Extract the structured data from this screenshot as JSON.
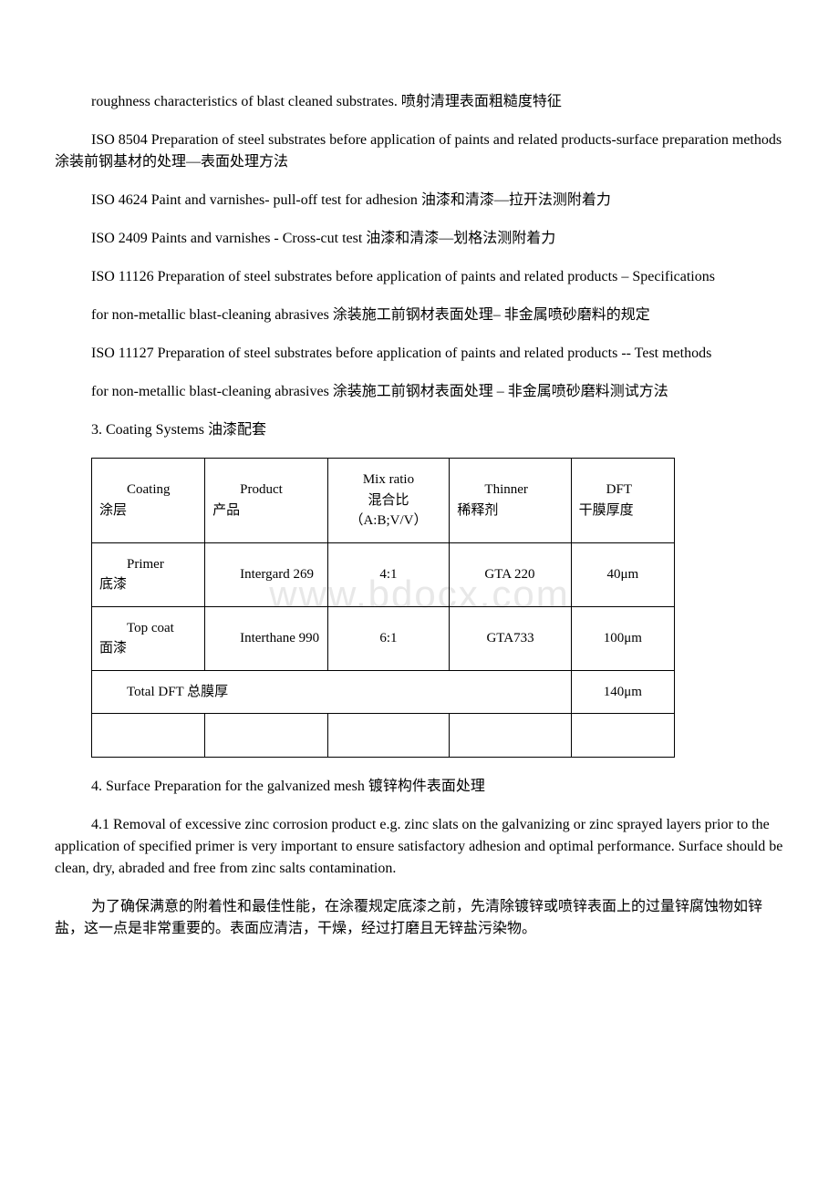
{
  "watermark": "www.bdocx.com",
  "paragraphs": {
    "p1": "roughness characteristics of blast cleaned substrates. 喷射清理表面粗糙度特征",
    "p2": "ISO 8504 Preparation of steel substrates before application of paints and related products-surface preparation methods 涂装前钢基材的处理—表面处理方法",
    "p3": "ISO 4624  Paint and varnishes- pull-off test for adhesion 油漆和清漆—拉开法测附着力",
    "p4": "ISO 2409  Paints and varnishes - Cross-cut test 油漆和清漆—划格法测附着力",
    "p5a": "ISO 11126 Preparation of steel substrates before application of paints and related products – Specifications",
    "p5b": "for non-metallic blast-cleaning abrasives 涂装施工前钢材表面处理– 非金属喷砂磨料的规定",
    "p6a": "ISO 11127 Preparation of steel substrates before application of paints and related products -- Test methods",
    "p6b": "for non-metallic blast-cleaning abrasives 涂装施工前钢材表面处理 – 非金属喷砂磨料测试方法",
    "section3": "3. Coating Systems 油漆配套",
    "section4": "4. Surface Preparation for the galvanized mesh 镀锌构件表面处理",
    "p41": "4.1 Removal of excessive zinc corrosion product e.g. zinc slats on the galvanizing or zinc sprayed layers prior to the application of specified primer is very important to ensure satisfactory adhesion and optimal performance. Surface should be clean, dry, abraded and free from zinc salts contamination.",
    "p41cn": "为了确保满意的附着性和最佳性能，在涂覆规定底漆之前，先清除镀锌或喷锌表面上的过量锌腐蚀物如锌盐，这一点是非常重要的。表面应清洁，干燥，经过打磨且无锌盐污染物。"
  },
  "table": {
    "header": {
      "coating_en": "Coating",
      "coating_cn": "涂层",
      "product_en": "Product",
      "product_cn": "产品",
      "mix_en": "Mix ratio",
      "mix_cn": "混合比（A:B;V/V）",
      "thinner_en": "Thinner",
      "thinner_cn": "稀释剂",
      "dft_en": "DFT",
      "dft_cn": "干膜厚度"
    },
    "rows": [
      {
        "coating_en": "Primer",
        "coating_cn": "底漆",
        "product": "Intergard 269",
        "mix": "4:1",
        "thinner": "GTA 220",
        "dft": "40μm"
      },
      {
        "coating_en": "Top coat",
        "coating_cn": "面漆",
        "product": "Interthane 990",
        "mix": "6:1",
        "thinner": "GTA733",
        "dft": "100μm"
      }
    ],
    "total_label": "Total DFT 总膜厚",
    "total_value": "140μm"
  }
}
